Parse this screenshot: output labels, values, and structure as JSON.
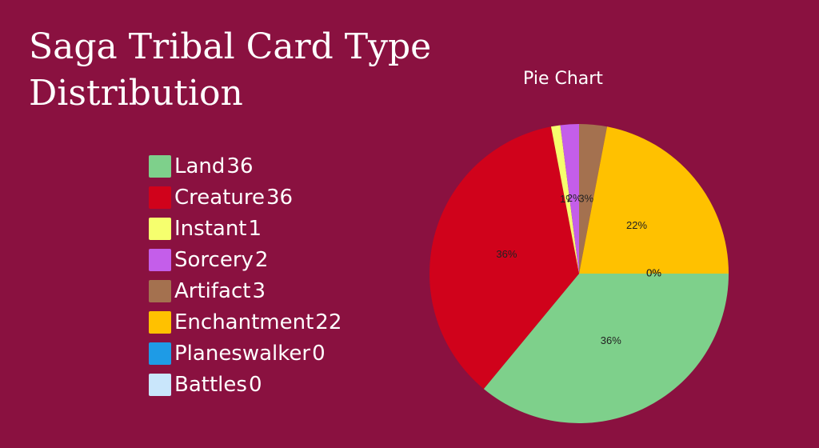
{
  "title": "Saga Tribal Card Type Distribution",
  "chart_data": {
    "type": "pie",
    "subtitle": "Pie Chart",
    "legend_position": "left",
    "categories": [
      "Land",
      "Creature",
      "Instant",
      "Sorcery",
      "Artifact",
      "Enchantment",
      "Planeswalker",
      "Battles"
    ],
    "values": [
      36,
      36,
      1,
      2,
      3,
      22,
      0,
      0
    ],
    "slice_labels": [
      "36%",
      "36%",
      "1%",
      "2%",
      "3%",
      "22%",
      "0%",
      "0%"
    ],
    "colors": [
      "#7ed08b",
      "#d0021b",
      "#f6ff6e",
      "#c45eea",
      "#a4714f",
      "#ffc100",
      "#1e9be6",
      "#c9e6fb"
    ]
  }
}
